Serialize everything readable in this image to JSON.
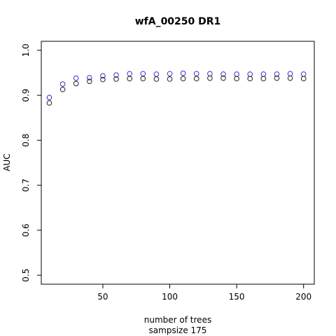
{
  "chart_data": {
    "type": "scatter",
    "title": "wfA_00250 DR1",
    "xlabel": "number of trees",
    "xlabel2": "sampsize 175",
    "ylabel": "AUC",
    "xlim": [
      4,
      208
    ],
    "ylim": [
      0.48,
      1.02
    ],
    "xticks": [
      50,
      100,
      150,
      200
    ],
    "yticks": [
      0.5,
      0.6,
      0.7,
      0.8,
      0.9,
      1.0
    ],
    "ytick_labels": [
      "0.5",
      "0.6",
      "0.7",
      "0.8",
      "0.9",
      "1.0"
    ],
    "grid": false,
    "series": [
      {
        "color": "#3333cc",
        "x": [
          10,
          20,
          30,
          40,
          50,
          60,
          70,
          80,
          90,
          100,
          110,
          120,
          130,
          140,
          150,
          160,
          170,
          180,
          190,
          200
        ],
        "y": [
          0.895,
          0.925,
          0.938,
          0.939,
          0.943,
          0.945,
          0.948,
          0.948,
          0.947,
          0.948,
          0.949,
          0.948,
          0.948,
          0.947,
          0.947,
          0.947,
          0.947,
          0.947,
          0.948,
          0.947
        ]
      },
      {
        "color": "#222222",
        "x": [
          10,
          20,
          30,
          40,
          50,
          60,
          70,
          80,
          90,
          100,
          110,
          120,
          130,
          140,
          150,
          160,
          170,
          180,
          190,
          200
        ],
        "y": [
          0.883,
          0.913,
          0.926,
          0.931,
          0.935,
          0.936,
          0.937,
          0.937,
          0.936,
          0.936,
          0.937,
          0.937,
          0.938,
          0.938,
          0.937,
          0.937,
          0.937,
          0.938,
          0.938,
          0.937
        ]
      }
    ]
  }
}
